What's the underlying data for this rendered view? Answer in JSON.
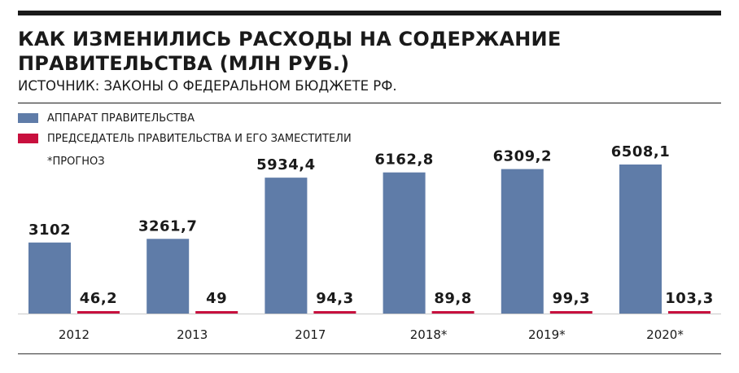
{
  "header": {
    "title": "КАК ИЗМЕНИЛИСЬ РАСХОДЫ НА СОДЕРЖАНИЕ ПРАВИТЕЛЬСТВА (МЛН РУБ.)",
    "subtitle": "ИСТОЧНИК: ЗАКОНЫ О ФЕДЕРАЛЬНОМ БЮДЖЕТЕ РФ."
  },
  "footnote": "*ПРОГНОЗ",
  "colors": {
    "apparatus": "#5f7ca8",
    "chairman": "#c8103e",
    "text": "#1a1a1a"
  },
  "chart_data": {
    "type": "bar",
    "categories": [
      "2012",
      "2013",
      "2017",
      "2018*",
      "2019*",
      "2020*"
    ],
    "series": [
      {
        "name": "АППАРАТ ПРАВИТЕЛЬСТВА",
        "values": [
          3102,
          3261.7,
          5934.4,
          6162.8,
          6309.2,
          6508.1
        ],
        "labels": [
          "3102",
          "3261,7",
          "5934,4",
          "6162,8",
          "6309,2",
          "6508,1"
        ]
      },
      {
        "name": "ПРЕДСЕДАТЕЛЬ ПРАВИТЕЛЬСТВА И ЕГО ЗАМЕСТИТЕЛИ",
        "values": [
          46.2,
          49,
          94.3,
          89.8,
          99.3,
          103.3
        ],
        "labels": [
          "46,2",
          "49",
          "94,3",
          "89,8",
          "99,3",
          "103,3"
        ]
      }
    ],
    "ylim": [
      0,
      6508.1
    ],
    "grid": false,
    "legend": "top-left"
  }
}
